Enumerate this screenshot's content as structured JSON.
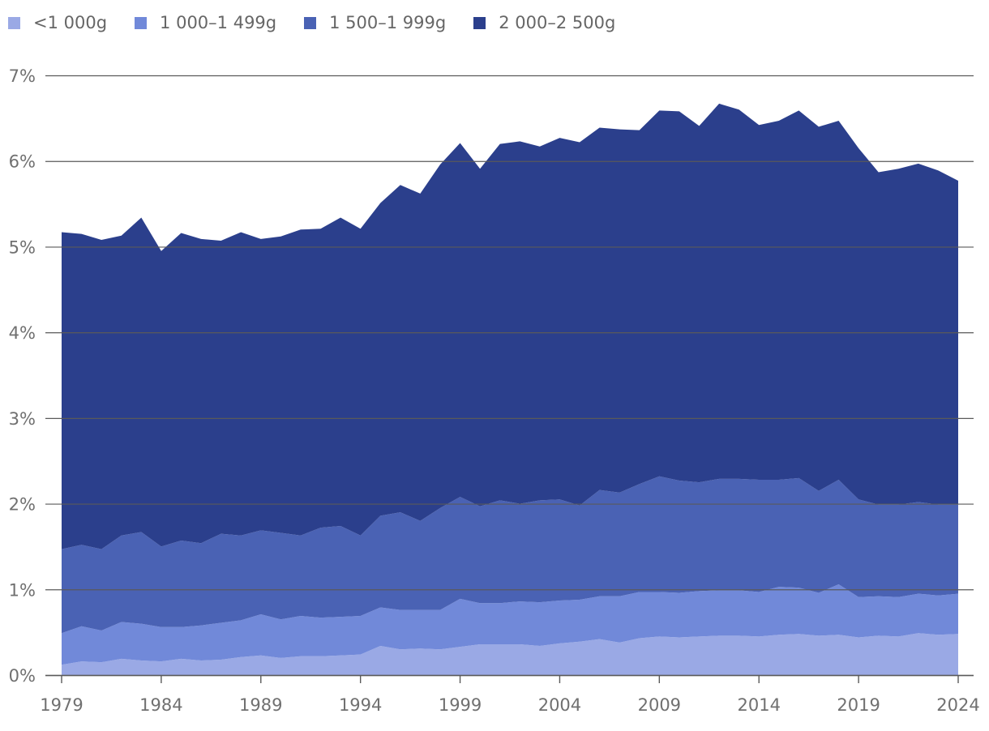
{
  "chart_data": {
    "type": "area",
    "stacked": true,
    "title": "",
    "xlabel": "",
    "ylabel": "",
    "ylim": [
      0,
      7
    ],
    "y_ticks": [
      "0%",
      "1%",
      "2%",
      "3%",
      "4%",
      "5%",
      "6%",
      "7%"
    ],
    "x_ticks": [
      "1979",
      "1984",
      "1989",
      "1994",
      "1999",
      "2004",
      "2009",
      "2014",
      "2019",
      "2024"
    ],
    "grid": true,
    "legend_position": "top-left",
    "x": [
      1979,
      1980,
      1981,
      1982,
      1983,
      1984,
      1985,
      1986,
      1987,
      1988,
      1989,
      1990,
      1991,
      1992,
      1993,
      1994,
      1995,
      1996,
      1997,
      1998,
      1999,
      2000,
      2001,
      2002,
      2003,
      2004,
      2005,
      2006,
      2007,
      2008,
      2009,
      2010,
      2011,
      2012,
      2013,
      2014,
      2015,
      2016,
      2017,
      2018,
      2019,
      2020,
      2021,
      2022,
      2023,
      2024
    ],
    "series": [
      {
        "name": "<1 000g",
        "color": "#9aa9e5",
        "values": [
          0.12,
          0.16,
          0.15,
          0.19,
          0.17,
          0.16,
          0.19,
          0.17,
          0.18,
          0.21,
          0.23,
          0.2,
          0.22,
          0.22,
          0.23,
          0.24,
          0.34,
          0.3,
          0.31,
          0.3,
          0.33,
          0.36,
          0.36,
          0.36,
          0.34,
          0.37,
          0.39,
          0.42,
          0.38,
          0.43,
          0.45,
          0.44,
          0.45,
          0.46,
          0.46,
          0.45,
          0.47,
          0.48,
          0.46,
          0.47,
          0.44,
          0.46,
          0.45,
          0.49,
          0.47,
          0.48
        ]
      },
      {
        "name": "1 000–1 499g",
        "color": "#7189d9",
        "values": [
          0.37,
          0.41,
          0.37,
          0.43,
          0.43,
          0.4,
          0.37,
          0.41,
          0.43,
          0.43,
          0.48,
          0.45,
          0.47,
          0.45,
          0.45,
          0.45,
          0.45,
          0.46,
          0.45,
          0.46,
          0.56,
          0.48,
          0.48,
          0.5,
          0.51,
          0.5,
          0.49,
          0.5,
          0.54,
          0.54,
          0.52,
          0.52,
          0.53,
          0.53,
          0.53,
          0.52,
          0.56,
          0.54,
          0.5,
          0.59,
          0.47,
          0.46,
          0.46,
          0.46,
          0.46,
          0.47
        ]
      },
      {
        "name": "1 500–1 999g",
        "color": "#4a62b4",
        "values": [
          0.98,
          0.95,
          0.95,
          1.01,
          1.07,
          0.94,
          1.01,
          0.96,
          1.04,
          0.99,
          0.98,
          1.01,
          0.94,
          1.05,
          1.06,
          0.94,
          1.07,
          1.14,
          1.04,
          1.19,
          1.19,
          1.13,
          1.2,
          1.14,
          1.19,
          1.18,
          1.1,
          1.24,
          1.21,
          1.26,
          1.35,
          1.31,
          1.27,
          1.3,
          1.3,
          1.31,
          1.25,
          1.28,
          1.19,
          1.22,
          1.14,
          1.07,
          1.08,
          1.07,
          1.06,
          1.04
        ]
      },
      {
        "name": "2 000–2 500g",
        "color": "#2b3f8c",
        "values": [
          3.7,
          3.63,
          3.61,
          3.5,
          3.67,
          3.45,
          3.59,
          3.55,
          3.42,
          3.54,
          3.4,
          3.46,
          3.57,
          3.49,
          3.6,
          3.58,
          3.65,
          3.82,
          3.82,
          4.01,
          4.13,
          3.94,
          4.16,
          4.23,
          4.13,
          4.22,
          4.24,
          4.23,
          4.24,
          4.13,
          4.27,
          4.31,
          4.16,
          4.38,
          4.31,
          4.14,
          4.19,
          4.29,
          4.25,
          4.19,
          4.1,
          3.88,
          3.92,
          3.95,
          3.9,
          3.78
        ]
      }
    ]
  }
}
